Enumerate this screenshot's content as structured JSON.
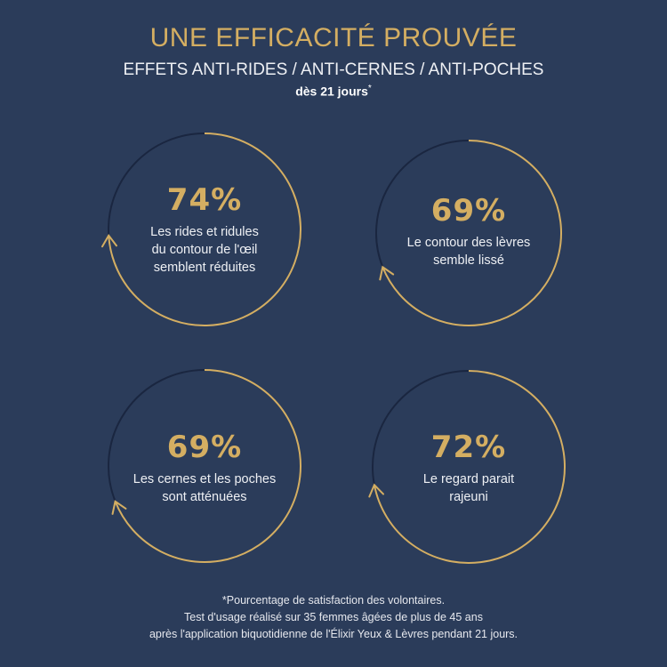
{
  "header": {
    "title": "UNE EFFICACITÉ PROUVÉE",
    "subtitle": "EFFETS ANTI-RIDES / ANTI-CERNES / ANTI-POCHES",
    "since": "dès 21 jours",
    "since_mark": "*"
  },
  "colors": {
    "background": "#2B3C5A",
    "gold": "#D4AE62",
    "track": "#1A2640",
    "text": "#EEF0F4"
  },
  "stats": [
    {
      "value": "74%",
      "percent": 74,
      "description": "Les rides et ridules\ndu contour de l'œil\nsemblent réduites"
    },
    {
      "value": "69%",
      "percent": 69,
      "description": "Le contour des lèvres\nsemble lissé"
    },
    {
      "value": "69%",
      "percent": 69,
      "description": "Les cernes et les poches\nsont atténuées"
    },
    {
      "value": "72%",
      "percent": 72,
      "description": "Le regard parait\nrajeuni"
    }
  ],
  "footnote": {
    "text": "*Pourcentage de satisfaction des volontaires.\nTest d'usage réalisé sur 35 femmes âgées de plus de 45 ans\naprès l'application biquotidienne de l'Élixir Yeux & Lèvres pendant 21 jours."
  }
}
